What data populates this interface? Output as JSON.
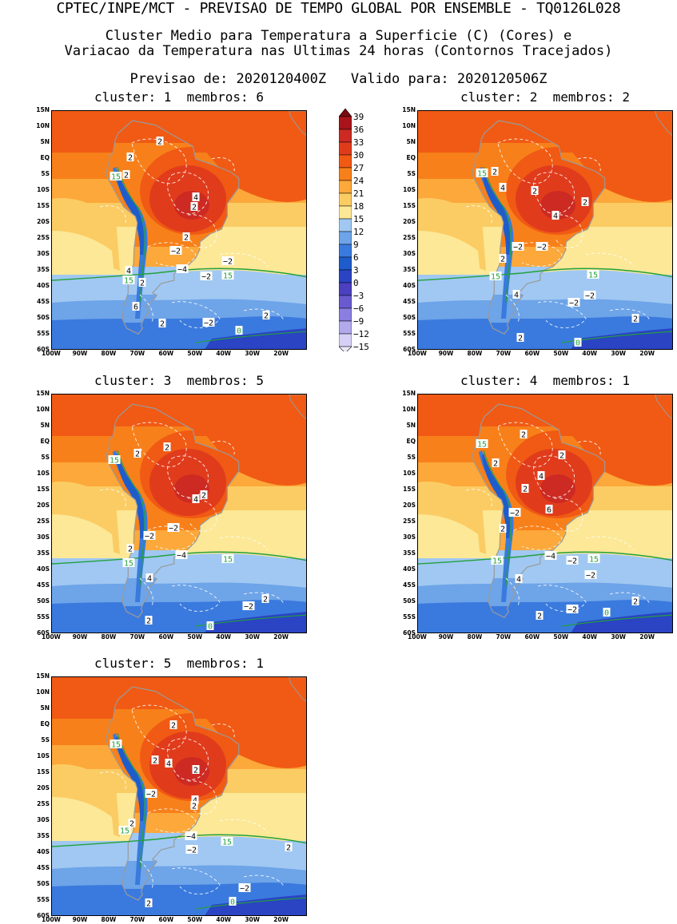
{
  "header": {
    "top": "CPTEC/INPE/MCT - PREVISAO DE TEMPO GLOBAL POR ENSEMBLE - TQ0126L028",
    "title_line1": "Cluster Medio para Temperatura a Superficie (C) (Cores) e",
    "title_line2": "Variacao da Temperatura nas Ultimas 24 horas (Contornos Tracejados)",
    "forecast": "Previsao de: 2020120400Z   Valido para: 2020120506Z"
  },
  "panels": [
    {
      "title": "cluster: 1  membros: 6",
      "labels": [
        "2",
        "2",
        "2",
        "4",
        "2",
        "2",
        "-2",
        "-4",
        "-2",
        "-2",
        "4",
        "2",
        "6",
        "2",
        "-2",
        "2",
        "0",
        "15",
        "15",
        "15"
      ]
    },
    {
      "title": "cluster: 2  membros: 2",
      "labels": [
        "2",
        "4",
        "2",
        "2",
        "4",
        "-2",
        "-2",
        "2",
        "4",
        "-2",
        "-2",
        "2",
        "2",
        "0",
        "15",
        "15",
        "15"
      ]
    },
    {
      "title": "cluster: 3  membros: 5",
      "labels": [
        "2",
        "2",
        "4",
        "2",
        "-2",
        "-2",
        "2",
        "-4",
        "4",
        "2",
        "-2",
        "2",
        "0",
        "15",
        "15",
        "15"
      ]
    },
    {
      "title": "cluster: 4  membros: 1",
      "labels": [
        "2",
        "2",
        "2",
        "4",
        "2",
        "6",
        "-2",
        "2",
        "-4",
        "-2",
        "-2",
        "4",
        "2",
        "-2",
        "2",
        "0",
        "15",
        "15",
        "15"
      ]
    },
    {
      "title": "cluster: 5  membros: 1",
      "labels": [
        "2",
        "2",
        "4",
        "2",
        "-2",
        "4",
        "2",
        "-4",
        "-2",
        "2",
        "2",
        "-2",
        "2",
        "0",
        "15",
        "15",
        "15"
      ]
    }
  ],
  "axes": {
    "lat_ticks": [
      "15N",
      "10N",
      "5N",
      "EQ",
      "5S",
      "10S",
      "15S",
      "20S",
      "25S",
      "30S",
      "35S",
      "40S",
      "45S",
      "50S",
      "55S",
      "60S"
    ],
    "lon_ticks": [
      "100W",
      "90W",
      "80W",
      "70W",
      "60W",
      "50W",
      "40W",
      "30W",
      "20W"
    ],
    "lon_range": [
      -100,
      -11
    ],
    "lat_range": [
      -60,
      15
    ]
  },
  "colorbar": {
    "labels": [
      "39",
      "36",
      "33",
      "30",
      "27",
      "24",
      "21",
      "18",
      "15",
      "12",
      "9",
      "6",
      "3",
      "0",
      "-3",
      "-6",
      "-9",
      "-12",
      "-15"
    ],
    "colors": {
      "above_36": "#a8141a",
      "33": "#cc2a22",
      "30": "#e03c1c",
      "27": "#f05a14",
      "24": "#f8801a",
      "21": "#fca83a",
      "18": "#fbcc64",
      "15": "#fce896",
      "12": "#a0c8f2",
      "9": "#6ea4e8",
      "6": "#3a7ade",
      "3": "#1e5ccc",
      "0": "#2a44c4",
      "-3": "#4a40c0",
      "-6": "#6a5ad0",
      "-9": "#8a7ee0",
      "-12": "#b2a8ec",
      "-15": "#d6d0f6"
    },
    "isoline_15_color": "#23a03c",
    "contour_color": "#ffffff",
    "land_outline_color": "#9a9a9a"
  }
}
